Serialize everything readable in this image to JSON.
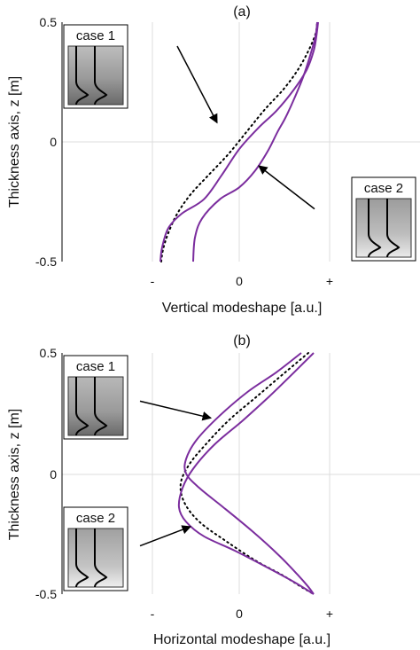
{
  "chart_data": [
    {
      "type": "line",
      "title": "(a)",
      "xlabel": "Vertical modeshape [a.u.]",
      "ylabel": "Thickness axis, z [m]",
      "xticks": [
        "-",
        "0",
        "+"
      ],
      "yticks": [
        "0.5",
        "0",
        "-0.5"
      ],
      "xlim": [
        -1,
        1
      ],
      "ylim": [
        -0.5,
        0.5
      ],
      "grid": true,
      "colors": {
        "case_lines": "#7b2d9e",
        "reference": "#000000"
      },
      "insets": [
        {
          "label": "case 1",
          "position": "top-left"
        },
        {
          "label": "case 2",
          "position": "bottom-right"
        }
      ],
      "annotations": [
        {
          "type": "arrow",
          "from": [
            -0.7,
            0.4
          ],
          "to": [
            -0.25,
            0.08
          ]
        },
        {
          "type": "arrow",
          "from": [
            0.85,
            -0.28
          ],
          "to": [
            0.22,
            -0.1
          ]
        }
      ],
      "series": [
        {
          "style": "dotted",
          "x": [
            -0.88,
            -0.86,
            -0.8,
            -0.7,
            -0.55,
            -0.35,
            -0.12,
            0.1,
            0.3,
            0.5,
            0.66,
            0.78,
            0.86,
            0.88
          ],
          "y": [
            -0.5,
            -0.45,
            -0.38,
            -0.3,
            -0.22,
            -0.14,
            -0.05,
            0.05,
            0.14,
            0.22,
            0.3,
            0.38,
            0.45,
            0.5
          ]
        },
        {
          "style": "solid",
          "x": [
            -0.89,
            -0.87,
            -0.8,
            -0.65,
            -0.4,
            -0.2,
            0.0,
            0.22,
            0.42,
            0.62,
            0.76,
            0.84,
            0.87,
            0.89
          ],
          "y": [
            -0.5,
            -0.44,
            -0.36,
            -0.3,
            -0.24,
            -0.14,
            -0.03,
            0.06,
            0.13,
            0.22,
            0.3,
            0.38,
            0.44,
            0.5
          ]
        },
        {
          "style": "solid",
          "x": [
            -0.52,
            -0.5,
            -0.42,
            -0.22,
            0.0,
            0.18,
            0.32,
            0.43,
            0.52,
            0.62,
            0.72,
            0.8,
            0.86,
            0.88
          ],
          "y": [
            -0.5,
            -0.4,
            -0.32,
            -0.24,
            -0.19,
            -0.12,
            -0.04,
            0.04,
            0.1,
            0.18,
            0.27,
            0.36,
            0.44,
            0.5
          ]
        }
      ]
    },
    {
      "type": "line",
      "title": "(b)",
      "xlabel": "Horizontal modeshape [a.u.]",
      "ylabel": "Thickness axis, z [m]",
      "xticks": [
        "-",
        "0",
        "+"
      ],
      "yticks": [
        "0.5",
        "0",
        "-0.5"
      ],
      "xlim": [
        -1,
        1
      ],
      "ylim": [
        -0.5,
        0.5
      ],
      "grid": true,
      "colors": {
        "case_lines": "#7b2d9e",
        "reference": "#000000"
      },
      "insets": [
        {
          "label": "case 1",
          "position": "top-left"
        },
        {
          "label": "case 2",
          "position": "bottom-left"
        }
      ],
      "annotations": [
        {
          "type": "arrow",
          "from": [
            -1.12,
            0.3
          ],
          "to": [
            -0.32,
            0.23
          ]
        },
        {
          "type": "arrow",
          "from": [
            -1.12,
            -0.3
          ],
          "to": [
            -0.55,
            -0.22
          ]
        }
      ],
      "series": [
        {
          "style": "dotted",
          "x": [
            0.78,
            0.52,
            0.2,
            -0.12,
            -0.38,
            -0.56,
            -0.66,
            -0.62,
            -0.45,
            -0.15,
            0.18,
            0.48,
            0.7,
            0.84
          ],
          "y": [
            0.5,
            0.42,
            0.32,
            0.22,
            0.12,
            0.04,
            -0.04,
            -0.12,
            -0.2,
            -0.28,
            -0.36,
            -0.42,
            -0.47,
            -0.5
          ]
        },
        {
          "style": "solid",
          "x": [
            0.7,
            0.42,
            0.1,
            -0.22,
            -0.48,
            -0.6,
            -0.6,
            -0.45,
            -0.18,
            0.15,
            0.45,
            0.66,
            0.78,
            0.84
          ],
          "y": [
            0.5,
            0.42,
            0.34,
            0.24,
            0.14,
            0.06,
            0.0,
            -0.06,
            -0.14,
            -0.24,
            -0.34,
            -0.42,
            -0.47,
            -0.5
          ]
        },
        {
          "style": "solid",
          "x": [
            0.84,
            0.62,
            0.34,
            0.04,
            -0.28,
            -0.52,
            -0.64,
            -0.68,
            -0.6,
            -0.4,
            -0.05,
            0.32,
            0.62,
            0.84
          ],
          "y": [
            0.5,
            0.42,
            0.32,
            0.22,
            0.12,
            0.02,
            -0.06,
            -0.14,
            -0.2,
            -0.26,
            -0.32,
            -0.39,
            -0.45,
            -0.5
          ]
        }
      ]
    }
  ]
}
